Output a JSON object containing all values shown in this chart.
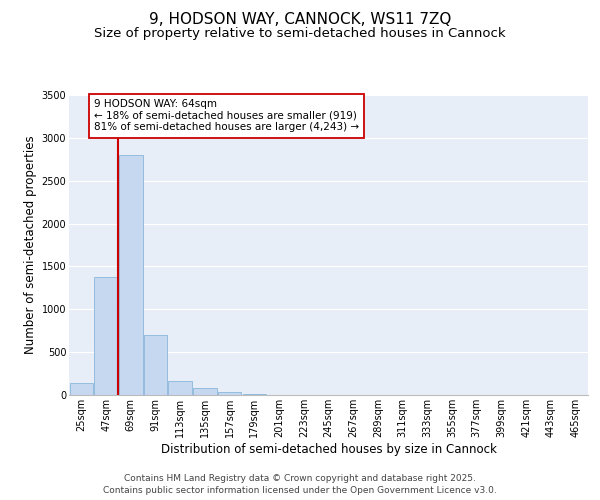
{
  "title": "9, HODSON WAY, CANNOCK, WS11 7ZQ",
  "subtitle": "Size of property relative to semi-detached houses in Cannock",
  "xlabel": "Distribution of semi-detached houses by size in Cannock",
  "ylabel": "Number of semi-detached properties",
  "categories": [
    "25sqm",
    "47sqm",
    "69sqm",
    "91sqm",
    "113sqm",
    "135sqm",
    "157sqm",
    "179sqm",
    "201sqm",
    "223sqm",
    "245sqm",
    "267sqm",
    "289sqm",
    "311sqm",
    "333sqm",
    "355sqm",
    "377sqm",
    "399sqm",
    "421sqm",
    "443sqm",
    "465sqm"
  ],
  "values": [
    140,
    1380,
    2800,
    700,
    160,
    85,
    40,
    15,
    0,
    0,
    0,
    0,
    0,
    0,
    0,
    0,
    0,
    0,
    0,
    0,
    0
  ],
  "bar_color": "#c5d8f0",
  "bar_edgecolor": "#7aadd4",
  "vline_color": "#cc0000",
  "vline_pos": 1.5,
  "annotation_line1": "9 HODSON WAY: 64sqm",
  "annotation_line2": "← 18% of semi-detached houses are smaller (919)",
  "annotation_line3": "81% of semi-detached houses are larger (4,243) →",
  "annotation_box_color": "#cc0000",
  "ylim": [
    0,
    3500
  ],
  "yticks": [
    0,
    500,
    1000,
    1500,
    2000,
    2500,
    3000,
    3500
  ],
  "plot_bg_color": "#e8eef8",
  "grid_color": "#ffffff",
  "footer_line1": "Contains HM Land Registry data © Crown copyright and database right 2025.",
  "footer_line2": "Contains public sector information licensed under the Open Government Licence v3.0.",
  "title_fontsize": 11,
  "subtitle_fontsize": 9.5,
  "axis_label_fontsize": 8.5,
  "tick_fontsize": 7,
  "annotation_fontsize": 7.5,
  "footer_fontsize": 6.5
}
